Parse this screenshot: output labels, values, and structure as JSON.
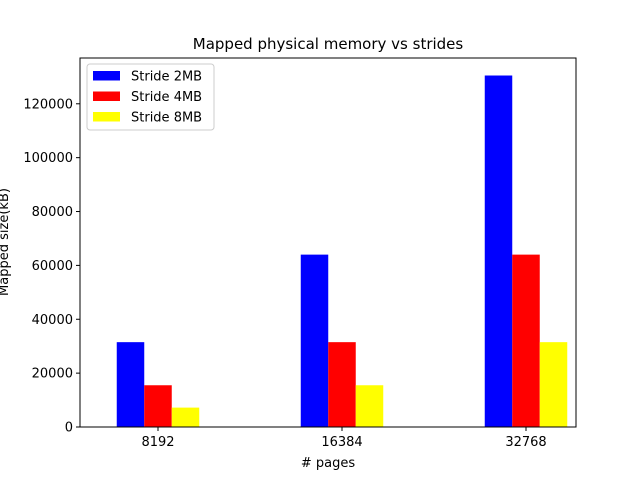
{
  "chart_data": {
    "type": "bar",
    "title": "Mapped physical memory vs strides",
    "xlabel": "# pages",
    "ylabel": "Mapped size(kB)",
    "categories": [
      "8192",
      "16384",
      "32768"
    ],
    "series": [
      {
        "name": "Stride 2MB",
        "color": "#0000ff",
        "values": [
          31500,
          64000,
          130500
        ]
      },
      {
        "name": "Stride 4MB",
        "color": "#ff0000",
        "values": [
          15500,
          31500,
          64000
        ]
      },
      {
        "name": "Stride 8MB",
        "color": "#ffff00",
        "values": [
          7200,
          15500,
          31500
        ]
      }
    ],
    "ylim": [
      0,
      137000
    ],
    "yticks": [
      0,
      20000,
      40000,
      60000,
      80000,
      100000,
      120000
    ],
    "legend": "top-left",
    "grid": false
  }
}
